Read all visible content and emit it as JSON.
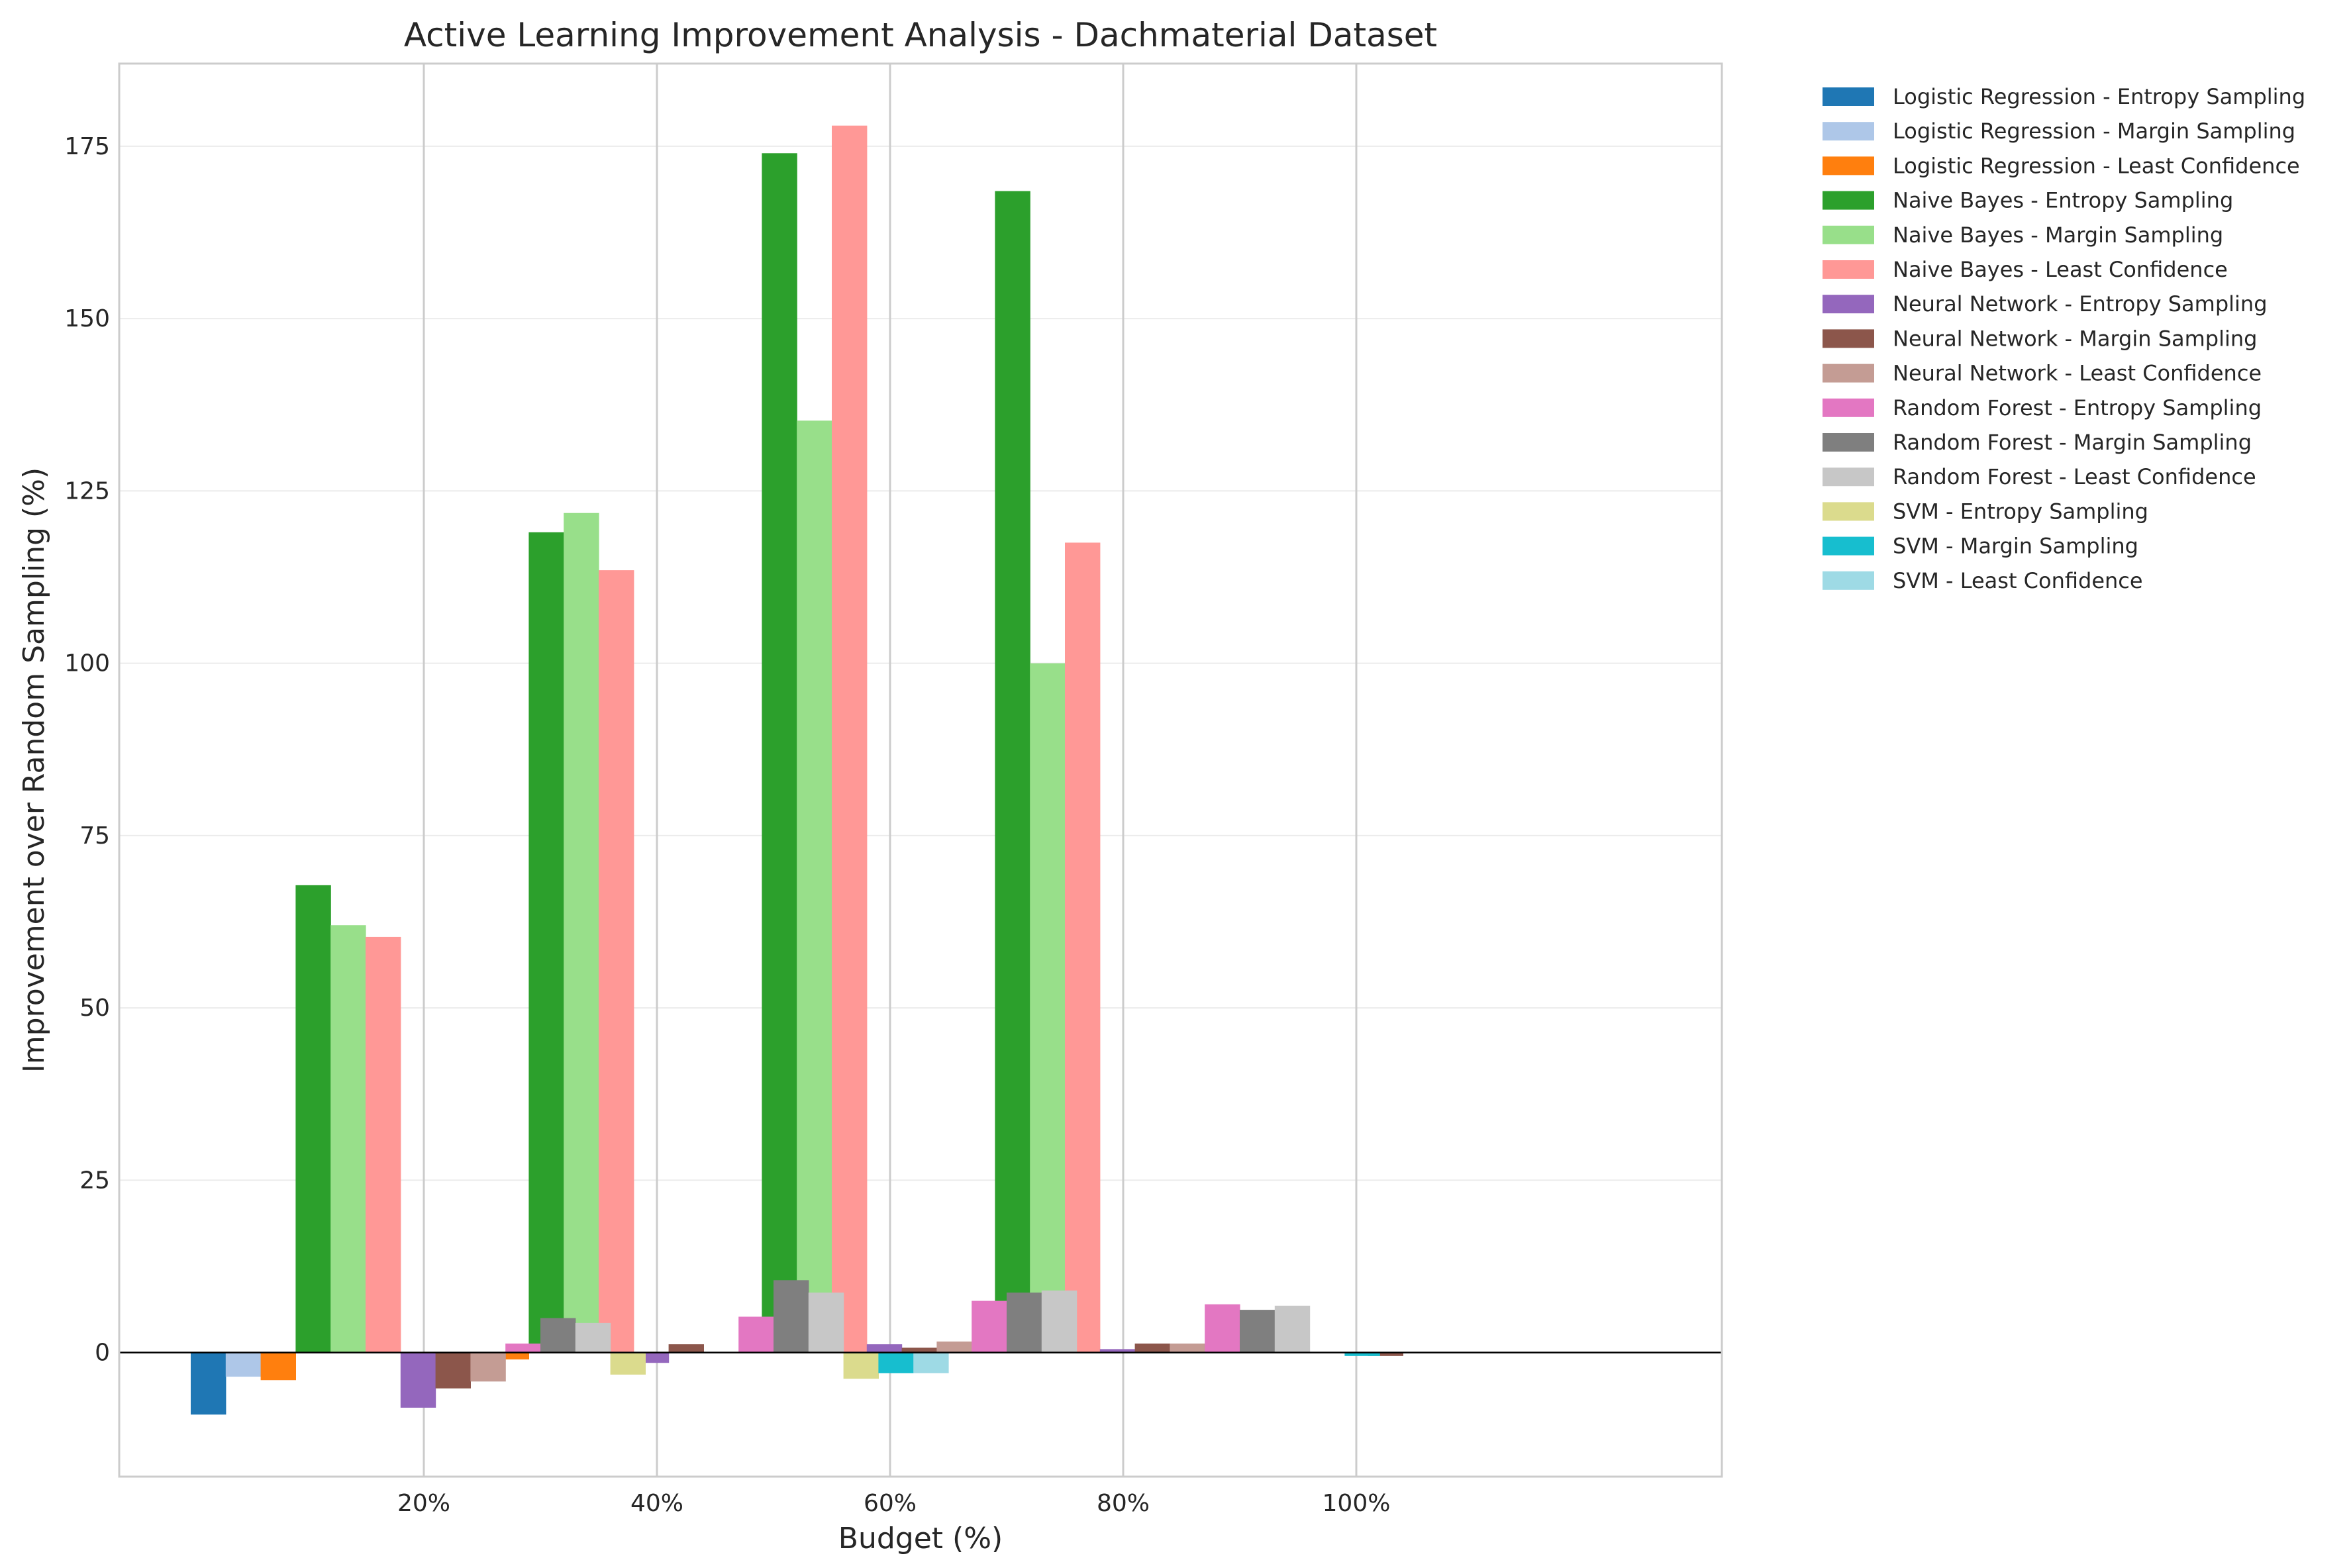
{
  "chart_data": {
    "type": "bar",
    "title": "Active Learning Improvement Analysis - Dachmaterial Dataset",
    "xlabel": "Budget (%)",
    "ylabel": "Improvement over Random Sampling (%)",
    "categories": [
      "20%",
      "40%",
      "60%",
      "80%",
      "100%"
    ],
    "ylim": [
      -18,
      187
    ],
    "yticks": [
      0,
      25,
      50,
      75,
      100,
      125,
      150,
      175
    ],
    "grid": "on",
    "legend_position": "outside-right",
    "series": [
      {
        "name": "Logistic Regression - Entropy Sampling",
        "color": "#1f77b4",
        "values": [
          -9.0,
          -1.0,
          0,
          0,
          0
        ]
      },
      {
        "name": "Logistic Regression - Margin Sampling",
        "color": "#aec7e8",
        "values": [
          -3.5,
          -2.3,
          0,
          0,
          0
        ]
      },
      {
        "name": "Logistic Regression - Least Confidence",
        "color": "#ff7f0e",
        "values": [
          -4.0,
          -1.0,
          0,
          0,
          0
        ]
      },
      {
        "name": "Naive Bayes - Entropy Sampling",
        "color": "#2ca02c",
        "values": [
          67.8,
          119.0,
          174.0,
          168.5,
          0
        ]
      },
      {
        "name": "Naive Bayes - Margin Sampling",
        "color": "#98df8a",
        "values": [
          62.0,
          121.8,
          135.2,
          100.0,
          0
        ]
      },
      {
        "name": "Naive Bayes - Least Confidence",
        "color": "#ff9896",
        "values": [
          60.3,
          113.5,
          178.0,
          117.5,
          0
        ]
      },
      {
        "name": "Neural Network - Entropy Sampling",
        "color": "#9467bd",
        "values": [
          -8.0,
          -1.5,
          1.2,
          0.5,
          0
        ]
      },
      {
        "name": "Neural Network - Margin Sampling",
        "color": "#8c564b",
        "values": [
          -5.2,
          1.2,
          0.7,
          1.3,
          -0.5
        ]
      },
      {
        "name": "Neural Network - Least Confidence",
        "color": "#c49c94",
        "values": [
          -4.2,
          0,
          1.6,
          1.3,
          0
        ]
      },
      {
        "name": "Random Forest - Entropy Sampling",
        "color": "#e377c2",
        "values": [
          1.3,
          5.2,
          7.5,
          7.0,
          0
        ]
      },
      {
        "name": "Random Forest - Margin Sampling",
        "color": "#7f7f7f",
        "values": [
          5.0,
          10.5,
          8.7,
          6.2,
          0
        ]
      },
      {
        "name": "Random Forest - Least Confidence",
        "color": "#c7c7c7",
        "values": [
          4.3,
          8.7,
          9.0,
          6.8,
          0
        ]
      },
      {
        "name": "SVM - Entropy Sampling",
        "color": "#dbdb8d",
        "values": [
          -3.2,
          -3.8,
          0,
          0,
          0
        ]
      },
      {
        "name": "SVM - Margin Sampling",
        "color": "#17becf",
        "values": [
          0,
          -3.0,
          0,
          -0.5,
          0
        ]
      },
      {
        "name": "SVM - Least Confidence",
        "color": "#9edae5",
        "values": [
          0,
          -3.0,
          0,
          0,
          0
        ]
      }
    ]
  }
}
